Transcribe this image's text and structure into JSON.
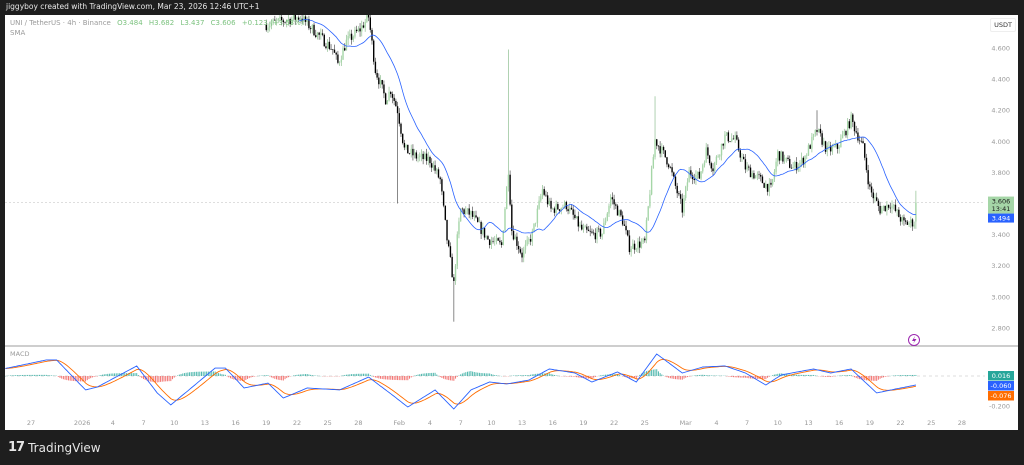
{
  "header": {
    "attribution": "jiggyboy created with TradingView.com, Mar 23, 2026 12:46 UTC+1"
  },
  "legend": {
    "symbol": "UNI / TetherUS · 4h · Binance",
    "open": "O3.484",
    "high": "H3.682",
    "low": "L3.437",
    "close": "C3.606",
    "change": "+0.123 (+3.53%)",
    "indicator": "SMA"
  },
  "macd_pane": {
    "label": "MACD"
  },
  "footer": {
    "brand": "TradingView"
  },
  "colors": {
    "up": "#a5d6a7",
    "down": "#000000",
    "sma": "#2962ff",
    "macd": "#2962ff",
    "signal": "#ff6d00",
    "hist_up": "#26a69a",
    "hist_down": "#ef5350"
  },
  "chart_data": {
    "type": "candlestick",
    "currency": "USDT",
    "price_axis": {
      "ticks": [
        "4.600",
        "4.400",
        "4.200",
        "4.000",
        "3.800",
        "3.400",
        "3.200",
        "3.000",
        "2.800"
      ],
      "tick_values": [
        4.6,
        4.4,
        4.2,
        4.0,
        3.8,
        3.4,
        3.2,
        3.0,
        2.8
      ]
    },
    "time_axis": [
      {
        "label": "27",
        "date": "12-27 00"
      },
      {
        "label": "2026",
        "date": "01-01 00"
      },
      {
        "label": "4",
        "date": "01-04 00"
      },
      {
        "label": "7",
        "date": "01-07 00"
      },
      {
        "label": "10",
        "date": "01-10 00"
      },
      {
        "label": "13",
        "date": "01-13 00"
      },
      {
        "label": "16",
        "date": "01-16 00"
      },
      {
        "label": "19",
        "date": "01-19 00"
      },
      {
        "label": "22",
        "date": "01-22 00"
      },
      {
        "label": "25",
        "date": "01-25 00"
      },
      {
        "label": "28",
        "date": "01-28 00"
      },
      {
        "label": "Feb",
        "date": "02-01 00"
      },
      {
        "label": "4",
        "date": "02-04 00"
      },
      {
        "label": "7",
        "date": "02-07 00"
      },
      {
        "label": "10",
        "date": "02-10 00"
      },
      {
        "label": "13",
        "date": "02-13 00"
      },
      {
        "label": "16",
        "date": "02-16 00"
      },
      {
        "label": "19",
        "date": "02-19 00"
      },
      {
        "label": "22",
        "date": "02-22 00"
      },
      {
        "label": "25",
        "date": "02-25 00"
      },
      {
        "label": "Mar",
        "date": "03-01 00"
      },
      {
        "label": "4",
        "date": "03-04 00"
      },
      {
        "label": "7",
        "date": "03-07 00"
      },
      {
        "label": "10",
        "date": "03-10 00"
      },
      {
        "label": "13",
        "date": "03-13 00"
      },
      {
        "label": "16",
        "date": "03-16 00"
      },
      {
        "label": "19",
        "date": "03-19 00"
      },
      {
        "label": "22",
        "date": "03-22 00"
      },
      {
        "label": "25",
        "date": "03-25 00"
      },
      {
        "label": "28",
        "date": "03-28 00"
      }
    ],
    "close_series": [
      [
        "01-19 00",
        4.75
      ],
      [
        "01-22 08",
        4.8
      ],
      [
        "01-25 12",
        4.59
      ],
      [
        "01-26 00",
        4.5
      ],
      [
        "01-26 20",
        4.64
      ],
      [
        "01-28 04",
        4.72
      ],
      [
        "01-29 00",
        4.8
      ],
      [
        "01-29 16",
        4.46
      ],
      [
        "01-30 16",
        4.27
      ],
      [
        "01-31 04",
        4.33
      ],
      [
        "01-31 20",
        4.2
      ],
      [
        "02-01 12",
        3.95
      ],
      [
        "02-02 16",
        3.9
      ],
      [
        "02-04 00",
        3.88
      ],
      [
        "02-05 00",
        3.75
      ],
      [
        "02-05 16",
        3.37
      ],
      [
        "02-06 08",
        3.08
      ],
      [
        "02-06 16",
        3.37
      ],
      [
        "02-07 00",
        3.56
      ],
      [
        "02-08 00",
        3.53
      ],
      [
        "02-09 16",
        3.37
      ],
      [
        "02-11 00",
        3.33
      ],
      [
        "02-11 16",
        3.82
      ],
      [
        "02-12 00",
        3.43
      ],
      [
        "02-13 00",
        3.27
      ],
      [
        "02-14 00",
        3.4
      ],
      [
        "02-15 00",
        3.69
      ],
      [
        "02-15 20",
        3.56
      ],
      [
        "02-17 08",
        3.59
      ],
      [
        "02-18 20",
        3.43
      ],
      [
        "02-19 20",
        3.4
      ],
      [
        "02-20 20",
        3.41
      ],
      [
        "02-21 16",
        3.64
      ],
      [
        "02-22 20",
        3.49
      ],
      [
        "02-23 12",
        3.32
      ],
      [
        "02-25 00",
        3.35
      ],
      [
        "02-26 00",
        4.01
      ],
      [
        "02-27 00",
        3.9
      ],
      [
        "02-27 08",
        3.86
      ],
      [
        "02-28 16",
        3.56
      ],
      [
        "03-01 08",
        3.8
      ],
      [
        "03-02 08",
        3.77
      ],
      [
        "03-03 00",
        3.94
      ],
      [
        "03-03 16",
        3.83
      ],
      [
        "03-04 20",
        4.03
      ],
      [
        "03-05 20",
        4.01
      ],
      [
        "03-06 20",
        3.83
      ],
      [
        "03-08 08",
        3.75
      ],
      [
        "03-09 08",
        3.69
      ],
      [
        "03-10 00",
        3.92
      ],
      [
        "03-11 12",
        3.83
      ],
      [
        "03-12 12",
        3.88
      ],
      [
        "03-13 20",
        4.07
      ],
      [
        "03-14 20",
        3.94
      ],
      [
        "03-15 20",
        3.96
      ],
      [
        "03-17 04",
        4.14
      ],
      [
        "03-18 08",
        3.96
      ],
      [
        "03-19 00",
        3.69
      ],
      [
        "03-20 00",
        3.56
      ],
      [
        "03-21 00",
        3.6
      ],
      [
        "03-22 08",
        3.47
      ],
      [
        "03-23 08",
        3.48
      ]
    ],
    "notable_wicks": [
      {
        "date": "01-31 20",
        "low": 3.6
      },
      {
        "date": "02-06 08",
        "low": 2.84
      },
      {
        "date": "02-11 16",
        "high": 4.59
      },
      {
        "date": "02-26 00",
        "high": 4.29
      },
      {
        "date": "03-13 20",
        "high": 4.2
      },
      {
        "date": "03-17 04",
        "high": 4.19
      }
    ],
    "last_bar": {
      "date": "03-23 12",
      "open": 3.484,
      "high": 3.682,
      "low": 3.437,
      "close": 3.606
    },
    "sma_period": 20,
    "price_labels": {
      "last": "3.606",
      "countdown": "13:41",
      "sma": "3.494"
    },
    "macd": {
      "zero_tick": "-0.200",
      "labels": {
        "hist": "0.016",
        "macd": "-0.060",
        "signal": "-0.076"
      },
      "macd_series": [
        [
          "12-24 12",
          0.05
        ],
        [
          "12-28 12",
          0.107
        ],
        [
          "12-29 12",
          0.107
        ],
        [
          "01-01 08",
          -0.093
        ],
        [
          "01-02 12",
          -0.073
        ],
        [
          "01-06 08",
          0.067
        ],
        [
          "01-08 08",
          -0.113
        ],
        [
          "01-09 16",
          -0.193
        ],
        [
          "01-14 00",
          0.053
        ],
        [
          "01-15 00",
          0.053
        ],
        [
          "01-16 20",
          -0.08
        ],
        [
          "01-19 04",
          -0.047
        ],
        [
          "01-20 16",
          -0.147
        ],
        [
          "01-23 00",
          -0.08
        ],
        [
          "01-26 04",
          -0.093
        ],
        [
          "01-29 00",
          -0.007
        ],
        [
          "01-31 08",
          -0.127
        ],
        [
          "02-01 20",
          -0.207
        ],
        [
          "02-04 12",
          -0.093
        ],
        [
          "02-06 08",
          -0.22
        ],
        [
          "02-08 00",
          -0.093
        ],
        [
          "02-09 20",
          -0.04
        ],
        [
          "02-11 12",
          -0.053
        ],
        [
          "02-13 16",
          -0.027
        ],
        [
          "02-15 16",
          0.047
        ],
        [
          "02-18 04",
          0.02
        ],
        [
          "02-19 20",
          -0.04
        ],
        [
          "02-22 08",
          0.027
        ],
        [
          "02-24 04",
          -0.04
        ],
        [
          "02-26 04",
          0.147
        ],
        [
          "02-28 16",
          0.02
        ],
        [
          "03-02 16",
          0.06
        ],
        [
          "03-04 20",
          0.067
        ],
        [
          "03-06 20",
          0.02
        ],
        [
          "03-08 20",
          -0.06
        ],
        [
          "03-10 08",
          0.007
        ],
        [
          "03-13 12",
          0.047
        ],
        [
          "03-15 04",
          0.02
        ],
        [
          "03-17 04",
          0.047
        ],
        [
          "03-19 16",
          -0.113
        ],
        [
          "03-21 12",
          -0.087
        ],
        [
          "03-23 12",
          -0.06
        ]
      ]
    }
  }
}
